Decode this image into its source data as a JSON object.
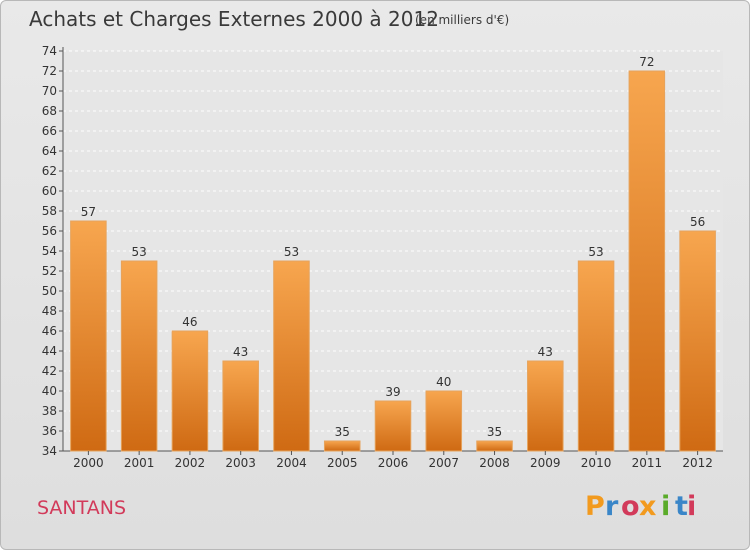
{
  "header": {
    "title": "Achats et Charges Externes 2000 à 2012",
    "subtitle": "(en milliers d'€)"
  },
  "footer": {
    "commune": "SANTANS",
    "logo_text": "Proxiti"
  },
  "colors": {
    "bar_top": "#f7a64f",
    "bar_bottom": "#cf6a13",
    "title": "#3a3a3a",
    "commune": "#d23a5a",
    "logo_letters": [
      "#f29a1e",
      "#3a86c8",
      "#d23a5a",
      "#f29a1e",
      "#5aab2a",
      "#3a86c8",
      "#d23a5a"
    ]
  },
  "chart_data": {
    "type": "bar",
    "title": "Achats et Charges Externes 2000 à 2012",
    "subtitle": "(en milliers d'€)",
    "categories": [
      "2000",
      "2001",
      "2002",
      "2003",
      "2004",
      "2005",
      "2006",
      "2007",
      "2008",
      "2009",
      "2010",
      "2011",
      "2012"
    ],
    "values": [
      57,
      53,
      46,
      43,
      53,
      35,
      39,
      40,
      35,
      43,
      53,
      72,
      56
    ],
    "ylim": [
      34,
      74
    ],
    "yticks": [
      34,
      36,
      38,
      40,
      42,
      44,
      46,
      48,
      50,
      52,
      54,
      56,
      58,
      60,
      62,
      64,
      66,
      68,
      70,
      72,
      74
    ],
    "grid": true,
    "xlabel": "",
    "ylabel": ""
  }
}
